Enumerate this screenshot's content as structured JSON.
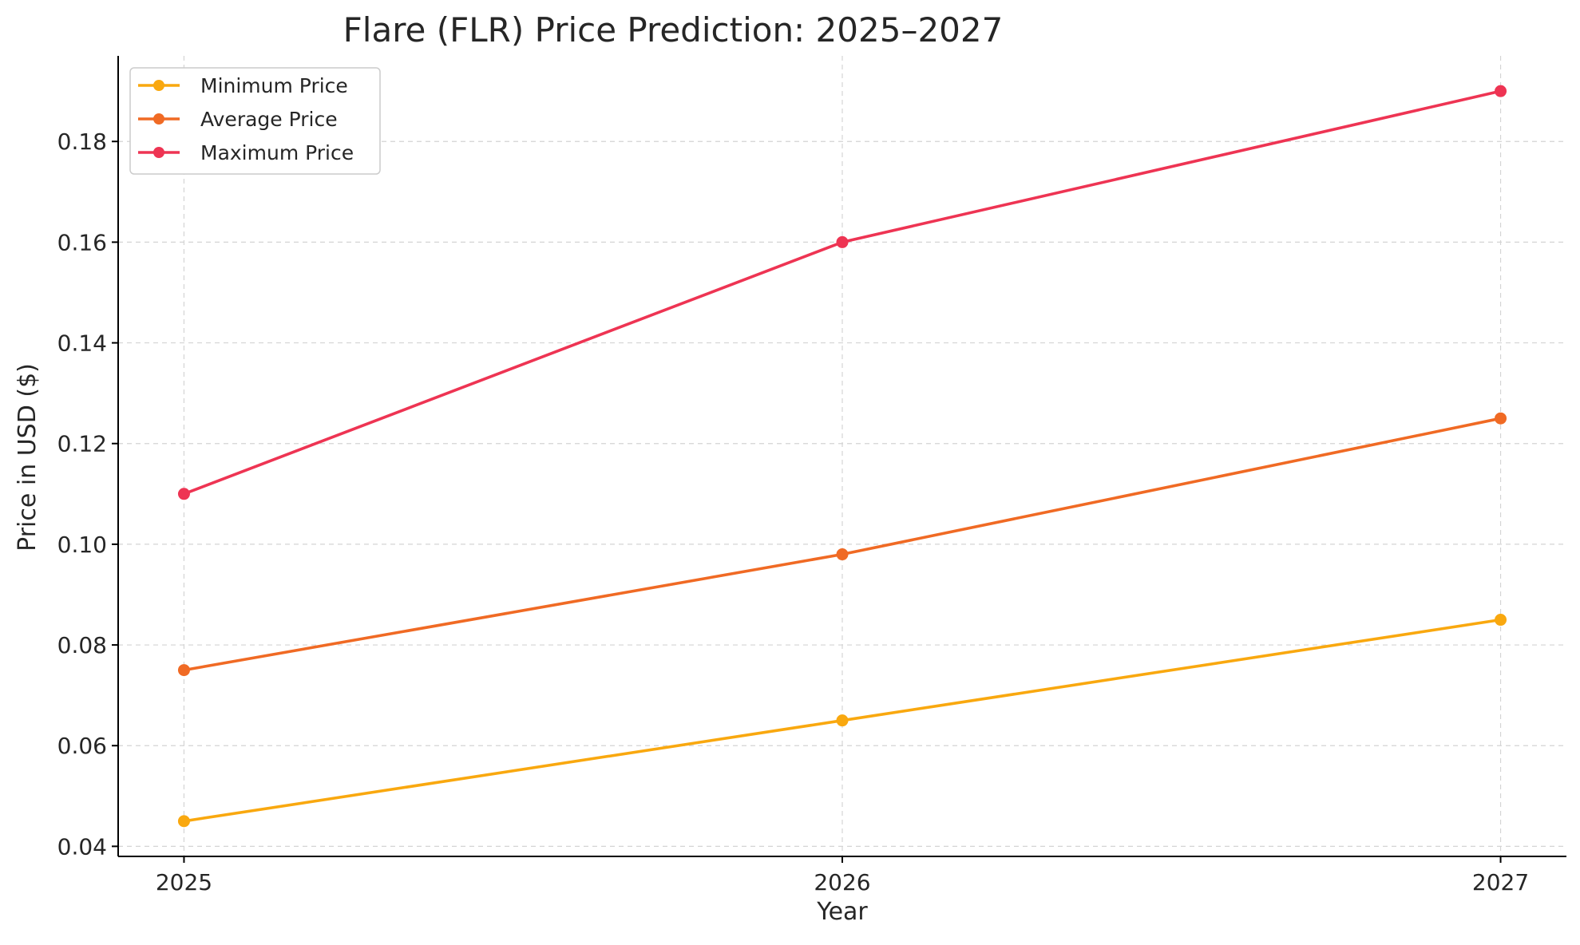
{
  "chart_data": {
    "type": "line",
    "title": "Flare (FLR) Price Prediction: 2025–2027",
    "xlabel": "Year",
    "ylabel": "Price in USD ($)",
    "x": [
      2025,
      2026,
      2027
    ],
    "x_tick_labels": [
      "2025",
      "2026",
      "2027"
    ],
    "xlim": [
      2024.9,
      2027.1
    ],
    "ylim": [
      0.038,
      0.197
    ],
    "y_ticks": [
      0.04,
      0.06,
      0.08,
      0.1,
      0.12,
      0.14,
      0.16,
      0.18
    ],
    "y_tick_labels": [
      "0.04",
      "0.06",
      "0.08",
      "0.10",
      "0.12",
      "0.14",
      "0.16",
      "0.18"
    ],
    "grid": true,
    "legend_position": "top-left",
    "series": [
      {
        "name": "Minimum Price",
        "color": "#F9A80F",
        "values": [
          0.045,
          0.065,
          0.085
        ]
      },
      {
        "name": "Average Price",
        "color": "#F06A24",
        "values": [
          0.075,
          0.098,
          0.125
        ]
      },
      {
        "name": "Maximum Price",
        "color": "#EE3453",
        "values": [
          0.11,
          0.16,
          0.19
        ]
      }
    ]
  }
}
